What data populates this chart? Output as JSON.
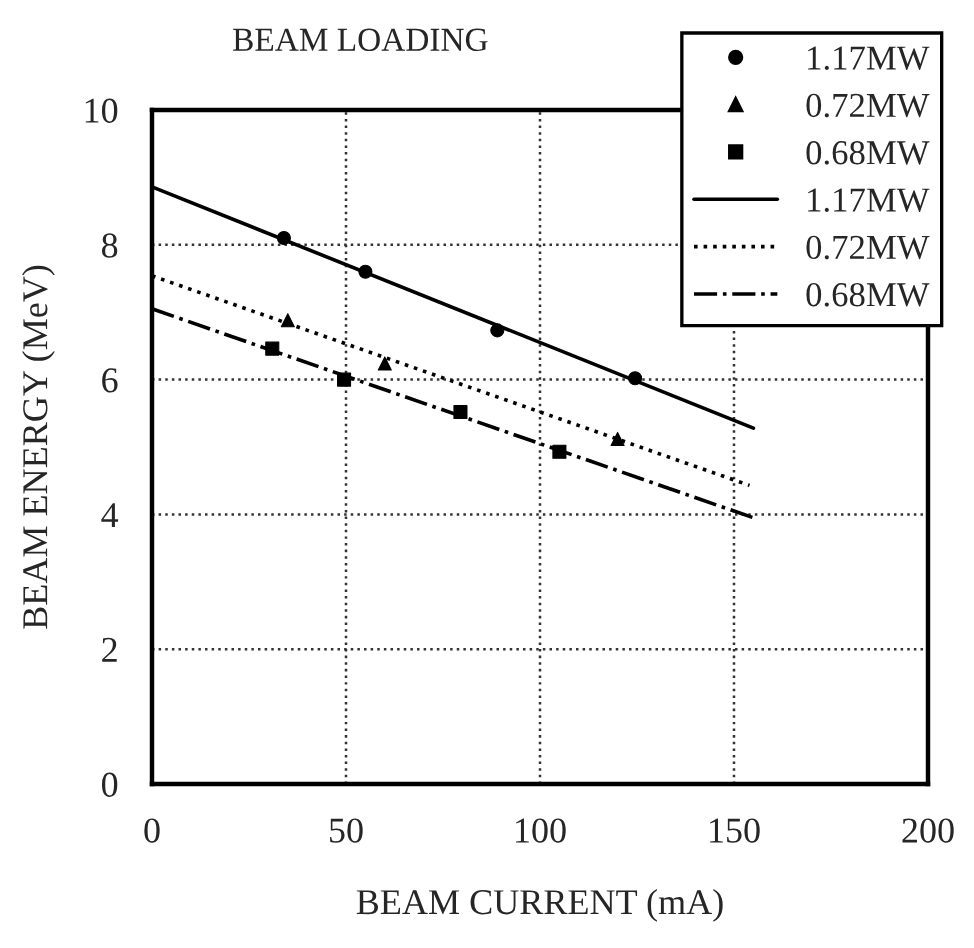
{
  "chart_data": {
    "type": "scatter",
    "title": "BEAM LOADING",
    "xlabel": "BEAM CURRENT (mA)",
    "ylabel": "BEAM ENERGY (MeV)",
    "xlim": [
      0,
      200
    ],
    "ylim": [
      0,
      10
    ],
    "xticks": [
      0,
      50,
      100,
      150,
      200
    ],
    "yticks": [
      0,
      2,
      4,
      6,
      8,
      10
    ],
    "grid": true,
    "legend": "top right",
    "series": [
      {
        "name": "1.17MW",
        "marker": "circle",
        "color": "#000000",
        "x": [
          34,
          55,
          89,
          124.5
        ],
        "values": [
          8.1,
          7.6,
          6.73,
          6.02
        ]
      },
      {
        "name": "0.72MW",
        "marker": "triangle",
        "color": "#000000",
        "x": [
          35,
          60,
          120
        ],
        "values": [
          6.88,
          6.24,
          5.12
        ]
      },
      {
        "name": "0.68MW",
        "marker": "square",
        "color": "#000000",
        "x": [
          31,
          49.5,
          79.5,
          105
        ],
        "values": [
          6.46,
          6.0,
          5.52,
          4.93
        ]
      },
      {
        "name": "1.17MW",
        "type": "line",
        "line_style": "solid",
        "color": "#000000",
        "x": [
          0,
          155
        ],
        "values": [
          8.86,
          5.28
        ]
      },
      {
        "name": "0.72MW",
        "type": "line",
        "line_style": "dotted",
        "color": "#000000",
        "x": [
          0,
          154
        ],
        "values": [
          7.54,
          4.43
        ]
      },
      {
        "name": "0.68MW",
        "type": "line",
        "line_style": "dashdot",
        "color": "#000000",
        "x": [
          0,
          155
        ],
        "values": [
          7.05,
          3.95
        ]
      }
    ]
  }
}
